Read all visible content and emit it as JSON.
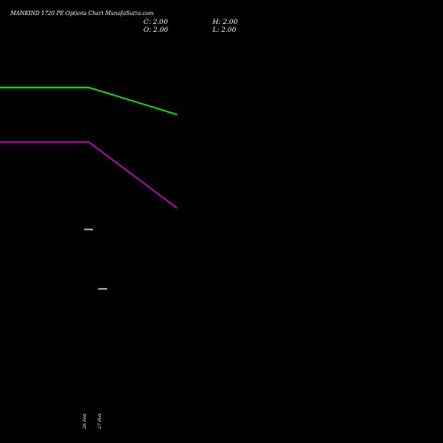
{
  "header": {
    "title": "MANKIND 1720  PE Options  Chart MunafaSutra.com",
    "c_label": "C: 2.00",
    "h_label": "H: 2.00",
    "o_label": "O: 2.00",
    "l_label": "L: 2.00"
  },
  "colors": {
    "background": "#000000",
    "green_line": "#00ff00",
    "magenta_line": "#cc00cc",
    "candle": "#ffffff"
  },
  "chart_data": {
    "type": "line",
    "title": "MANKIND 1720  PE Options  Chart MunafaSutra.com",
    "categories": [
      "",
      "26 Feb",
      "27 Feb"
    ],
    "series": [
      {
        "values": [
          2.0,
          2.0,
          1.55
        ],
        "color": "#00ff00"
      },
      {
        "values": [
          1.1,
          1.1,
          0.0
        ],
        "color": "#cc00cc"
      }
    ],
    "candles": [
      {
        "date": "26 Feb",
        "open": 2.0,
        "high": 2.0,
        "low": 2.0,
        "close": 2.0
      },
      {
        "date": "27 Feb",
        "open": 2.0,
        "high": 2.0,
        "low": 2.0,
        "close": 2.0
      }
    ],
    "xlabel": "",
    "ylabel": "",
    "grid": false
  }
}
